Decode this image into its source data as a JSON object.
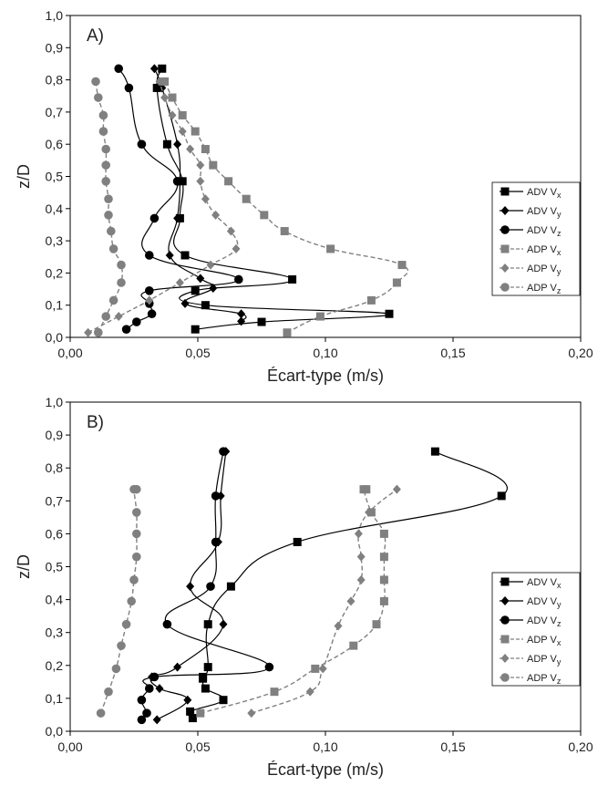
{
  "chart_data": [
    {
      "type": "line",
      "panel_label": "A)",
      "xlabel": "Écart-type (m/s)",
      "ylabel": "z/D",
      "xlim": [
        0,
        0.2
      ],
      "ylim": [
        0,
        1.0
      ],
      "xticks": [
        "0,00",
        "0,05",
        "0,10",
        "0,15",
        "0,20"
      ],
      "yticks": [
        "0,0",
        "0,1",
        "0,2",
        "0,3",
        "0,4",
        "0,5",
        "0,6",
        "0,7",
        "0,8",
        "0,9",
        "1,0"
      ],
      "grid": false,
      "legend_position": "right",
      "series": [
        {
          "name": "ADV Vx",
          "label_base": "ADV V",
          "label_sub": "x",
          "marker": "square",
          "line": "solid",
          "color": "#000000",
          "x": [
            0.049,
            0.075,
            0.125,
            0.053,
            0.049,
            0.087,
            0.045,
            0.043,
            0.044,
            0.038,
            0.034,
            0.036
          ],
          "y": [
            0.025,
            0.048,
            0.073,
            0.1,
            0.145,
            0.18,
            0.255,
            0.37,
            0.485,
            0.6,
            0.775,
            0.835
          ]
        },
        {
          "name": "ADV Vy",
          "label_base": "ADV V",
          "label_sub": "y",
          "marker": "diamond",
          "line": "solid",
          "color": "#000000",
          "x": [
            0.067,
            0.067,
            0.045,
            0.056,
            0.051,
            0.039,
            0.042,
            0.043,
            0.042,
            0.036,
            0.033
          ],
          "y": [
            0.05,
            0.073,
            0.105,
            0.153,
            0.183,
            0.255,
            0.37,
            0.485,
            0.6,
            0.775,
            0.835
          ]
        },
        {
          "name": "ADV Vz",
          "label_base": "ADV V",
          "label_sub": "z",
          "marker": "circle",
          "line": "solid",
          "color": "#000000",
          "x": [
            0.022,
            0.026,
            0.032,
            0.031,
            0.031,
            0.066,
            0.031,
            0.033,
            0.042,
            0.028,
            0.023,
            0.019
          ],
          "y": [
            0.025,
            0.048,
            0.073,
            0.105,
            0.145,
            0.18,
            0.255,
            0.37,
            0.485,
            0.6,
            0.775,
            0.835
          ]
        },
        {
          "name": "ADP Vx",
          "label_base": "ADP V",
          "label_sub": "x",
          "marker": "square",
          "line": "dashed",
          "color": "#808080",
          "x": [
            0.085,
            0.098,
            0.118,
            0.128,
            0.13,
            0.102,
            0.084,
            0.076,
            0.069,
            0.062,
            0.056,
            0.053,
            0.049,
            0.044,
            0.04,
            0.037
          ],
          "y": [
            0.015,
            0.065,
            0.115,
            0.17,
            0.225,
            0.275,
            0.33,
            0.38,
            0.43,
            0.485,
            0.535,
            0.585,
            0.64,
            0.69,
            0.745,
            0.795
          ]
        },
        {
          "name": "ADP Vy",
          "label_base": "ADP V",
          "label_sub": "y",
          "marker": "diamond",
          "line": "dashed",
          "color": "#808080",
          "x": [
            0.007,
            0.019,
            0.031,
            0.043,
            0.055,
            0.065,
            0.063,
            0.057,
            0.053,
            0.051,
            0.051,
            0.047,
            0.044,
            0.04,
            0.037,
            0.035
          ],
          "y": [
            0.015,
            0.065,
            0.115,
            0.17,
            0.225,
            0.275,
            0.33,
            0.38,
            0.43,
            0.485,
            0.535,
            0.585,
            0.64,
            0.69,
            0.745,
            0.795
          ]
        },
        {
          "name": "ADP Vz",
          "label_base": "ADP V",
          "label_sub": "z",
          "marker": "circle",
          "line": "dashed",
          "color": "#808080",
          "x": [
            0.011,
            0.014,
            0.017,
            0.02,
            0.02,
            0.017,
            0.016,
            0.015,
            0.015,
            0.014,
            0.014,
            0.014,
            0.013,
            0.013,
            0.011,
            0.01
          ],
          "y": [
            0.015,
            0.065,
            0.115,
            0.17,
            0.225,
            0.275,
            0.33,
            0.38,
            0.43,
            0.485,
            0.535,
            0.585,
            0.64,
            0.69,
            0.745,
            0.795
          ]
        }
      ]
    },
    {
      "type": "line",
      "panel_label": "B)",
      "xlabel": "Écart-type (m/s)",
      "ylabel": "z/D",
      "xlim": [
        0,
        0.2
      ],
      "ylim": [
        0,
        1.0
      ],
      "xticks": [
        "0,00",
        "0,05",
        "0,10",
        "0,15",
        "0,20"
      ],
      "yticks": [
        "0,0",
        "0,1",
        "0,2",
        "0,3",
        "0,4",
        "0,5",
        "0,6",
        "0,7",
        "0,8",
        "0,9",
        "1,0"
      ],
      "grid": false,
      "legend_position": "right",
      "series": [
        {
          "name": "ADV Vx",
          "label_base": "ADV V",
          "label_sub": "x",
          "marker": "square",
          "line": "solid",
          "color": "#000000",
          "x": [
            0.048,
            0.047,
            0.06,
            0.053,
            0.052,
            0.052,
            0.054,
            0.054,
            0.063,
            0.089,
            0.169,
            0.143
          ],
          "y": [
            0.04,
            0.06,
            0.095,
            0.13,
            0.16,
            0.165,
            0.195,
            0.325,
            0.44,
            0.575,
            0.715,
            0.85
          ]
        },
        {
          "name": "ADV Vy",
          "label_base": "ADV V",
          "label_sub": "y",
          "marker": "diamond",
          "line": "solid",
          "color": "#000000",
          "x": [
            0.034,
            0.046,
            0.035,
            0.032,
            0.042,
            0.06,
            0.047,
            0.058,
            0.059,
            0.061
          ],
          "y": [
            0.035,
            0.095,
            0.13,
            0.165,
            0.195,
            0.325,
            0.44,
            0.575,
            0.715,
            0.85
          ]
        },
        {
          "name": "ADV Vz",
          "label_base": "ADV V",
          "label_sub": "z",
          "marker": "circle",
          "line": "solid",
          "color": "#000000",
          "x": [
            0.028,
            0.03,
            0.028,
            0.031,
            0.033,
            0.078,
            0.038,
            0.055,
            0.057,
            0.057,
            0.06
          ],
          "y": [
            0.035,
            0.055,
            0.095,
            0.13,
            0.165,
            0.195,
            0.325,
            0.44,
            0.575,
            0.715,
            0.85
          ]
        },
        {
          "name": "ADP Vx",
          "label_base": "ADP V",
          "label_sub": "x",
          "marker": "square",
          "line": "dashed",
          "color": "#808080",
          "x": [
            0.051,
            0.08,
            0.096,
            0.111,
            0.12,
            0.123,
            0.123,
            0.123,
            0.123,
            0.118,
            0.115,
            0.116
          ],
          "y": [
            0.055,
            0.12,
            0.19,
            0.26,
            0.325,
            0.395,
            0.46,
            0.53,
            0.6,
            0.665,
            0.735,
            0.735
          ]
        },
        {
          "name": "ADP Vy",
          "label_base": "ADP V",
          "label_sub": "y",
          "marker": "diamond",
          "line": "dashed",
          "color": "#808080",
          "x": [
            0.071,
            0.094,
            0.099,
            0.105,
            0.11,
            0.114,
            0.114,
            0.113,
            0.117,
            0.128
          ],
          "y": [
            0.055,
            0.12,
            0.19,
            0.32,
            0.395,
            0.46,
            0.53,
            0.6,
            0.665,
            0.735
          ]
        },
        {
          "name": "ADP Vz",
          "label_base": "ADP V",
          "label_sub": "z",
          "marker": "circle",
          "line": "dashed",
          "color": "#808080",
          "x": [
            0.012,
            0.015,
            0.018,
            0.02,
            0.022,
            0.024,
            0.025,
            0.026,
            0.026,
            0.026,
            0.025,
            0.026
          ],
          "y": [
            0.055,
            0.12,
            0.19,
            0.26,
            0.325,
            0.395,
            0.46,
            0.53,
            0.6,
            0.665,
            0.735,
            0.735
          ]
        }
      ]
    }
  ]
}
